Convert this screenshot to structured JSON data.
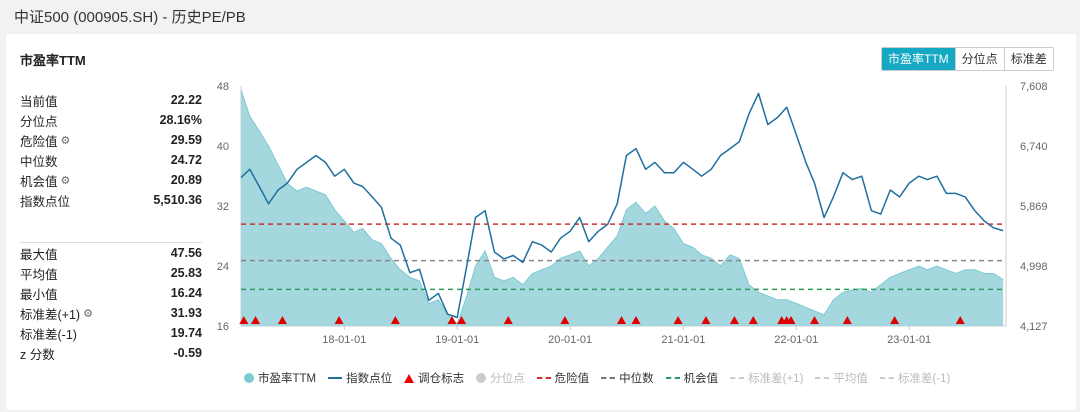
{
  "page": {
    "title": "中证500 (000905.SH) - 历史PE/PB"
  },
  "section": {
    "title": "市盈率TTM"
  },
  "tabs": [
    {
      "label": "市盈率TTM",
      "active": true
    },
    {
      "label": "分位点",
      "active": false
    },
    {
      "label": "标准差",
      "active": false
    }
  ],
  "stats_top": [
    {
      "label": "当前值",
      "value": "22.22",
      "gear": false
    },
    {
      "label": "分位点",
      "value": "28.16%",
      "gear": false
    },
    {
      "label": "危险值",
      "value": "29.59",
      "gear": true
    },
    {
      "label": "中位数",
      "value": "24.72",
      "gear": false
    },
    {
      "label": "机会值",
      "value": "20.89",
      "gear": true
    },
    {
      "label": "指数点位",
      "value": "5,510.36",
      "gear": false
    }
  ],
  "stats_bottom": [
    {
      "label": "最大值",
      "value": "47.56",
      "gear": false
    },
    {
      "label": "平均值",
      "value": "25.83",
      "gear": false
    },
    {
      "label": "最小值",
      "value": "16.24",
      "gear": false
    },
    {
      "label": "标准差(+1)",
      "value": "31.93",
      "gear": true
    },
    {
      "label": "标准差(-1)",
      "value": "19.74",
      "gear": false
    },
    {
      "label": "z 分数",
      "value": "-0.59",
      "gear": false
    }
  ],
  "colors": {
    "pe_fill": "#9fd5dc",
    "pe_line": "#7ecad3",
    "index_line": "#1f6f9f",
    "danger": "#d32f2f",
    "median": "#999999",
    "opportunity": "#2e9a5c",
    "marker": "#e00000",
    "tab_active": "#15a8c2"
  },
  "legend": [
    {
      "label": "市盈率TTM",
      "icon": "dot-icon",
      "muted": false
    },
    {
      "label": "指数点位",
      "icon": "line-icon",
      "muted": false
    },
    {
      "label": "调仓标志",
      "icon": "triangle-icon",
      "muted": false
    },
    {
      "label": "分位点",
      "icon": "dot-icon",
      "muted": true
    },
    {
      "label": "危险值",
      "icon": "dash-icon",
      "muted": false
    },
    {
      "label": "中位数",
      "icon": "dash-icon",
      "muted": false
    },
    {
      "label": "机会值",
      "icon": "dash-icon",
      "muted": false
    },
    {
      "label": "标准差(+1)",
      "icon": "dash-icon",
      "muted": true
    },
    {
      "label": "平均值",
      "icon": "dash-icon",
      "muted": true
    },
    {
      "label": "标准差(-1)",
      "icon": "dash-icon",
      "muted": true
    }
  ],
  "chart_data": {
    "type": "area",
    "x_tick_labels": [
      "18-01-01",
      "19-01-01",
      "20-01-01",
      "21-01-01",
      "22-01-01",
      "23-01-01"
    ],
    "x_tick_dates": [
      "2018-01-01",
      "2019-01-01",
      "2020-01-01",
      "2021-01-01",
      "2022-01-01",
      "2023-01-01"
    ],
    "x_range": [
      "2017-02-01",
      "2023-11-10"
    ],
    "left_axis": {
      "ticks": [
        "16",
        "24",
        "32",
        "40",
        "48"
      ],
      "range": [
        16,
        48
      ]
    },
    "right_axis": {
      "ticks": [
        "4,127",
        "4,998",
        "5,869",
        "6,740",
        "7,608"
      ],
      "range": [
        4127,
        7608
      ]
    },
    "reference_lines": {
      "danger": 29.59,
      "median": 24.72,
      "opportunity": 20.89
    },
    "series": [
      {
        "name": "市盈率TTM",
        "axis": "left",
        "points": [
          [
            "2017-02-01",
            47.5
          ],
          [
            "2017-03-01",
            44.0
          ],
          [
            "2017-04-01",
            42.0
          ],
          [
            "2017-05-01",
            40.0
          ],
          [
            "2017-06-01",
            37.5
          ],
          [
            "2017-07-01",
            35.0
          ],
          [
            "2017-08-01",
            34.0
          ],
          [
            "2017-09-01",
            34.5
          ],
          [
            "2017-10-01",
            34.0
          ],
          [
            "2017-11-01",
            33.5
          ],
          [
            "2017-12-01",
            31.5
          ],
          [
            "2018-01-01",
            30.0
          ],
          [
            "2018-02-01",
            28.5
          ],
          [
            "2018-03-01",
            29.0
          ],
          [
            "2018-04-01",
            27.5
          ],
          [
            "2018-05-01",
            27.0
          ],
          [
            "2018-06-01",
            25.0
          ],
          [
            "2018-07-01",
            23.5
          ],
          [
            "2018-08-01",
            22.5
          ],
          [
            "2018-09-01",
            22.0
          ],
          [
            "2018-10-01",
            19.0
          ],
          [
            "2018-11-01",
            19.5
          ],
          [
            "2018-12-01",
            17.5
          ],
          [
            "2019-01-01",
            16.3
          ],
          [
            "2019-02-01",
            20.0
          ],
          [
            "2019-03-01",
            24.0
          ],
          [
            "2019-04-01",
            26.0
          ],
          [
            "2019-05-01",
            22.5
          ],
          [
            "2019-06-01",
            22.0
          ],
          [
            "2019-07-01",
            22.5
          ],
          [
            "2019-08-01",
            21.5
          ],
          [
            "2019-09-01",
            23.0
          ],
          [
            "2019-10-01",
            23.5
          ],
          [
            "2019-11-01",
            24.0
          ],
          [
            "2019-12-01",
            25.0
          ],
          [
            "2020-01-01",
            25.5
          ],
          [
            "2020-02-01",
            26.0
          ],
          [
            "2020-03-01",
            24.0
          ],
          [
            "2020-04-01",
            25.0
          ],
          [
            "2020-05-01",
            26.5
          ],
          [
            "2020-06-01",
            28.0
          ],
          [
            "2020-07-01",
            31.5
          ],
          [
            "2020-08-01",
            32.5
          ],
          [
            "2020-09-01",
            31.0
          ],
          [
            "2020-10-01",
            32.0
          ],
          [
            "2020-11-01",
            30.0
          ],
          [
            "2020-12-01",
            29.0
          ],
          [
            "2021-01-01",
            27.0
          ],
          [
            "2021-02-01",
            26.5
          ],
          [
            "2021-03-01",
            25.5
          ],
          [
            "2021-04-01",
            25.0
          ],
          [
            "2021-05-01",
            24.0
          ],
          [
            "2021-06-01",
            25.5
          ],
          [
            "2021-07-01",
            25.0
          ],
          [
            "2021-08-01",
            21.5
          ],
          [
            "2021-09-01",
            20.5
          ],
          [
            "2021-10-01",
            20.0
          ],
          [
            "2021-11-01",
            19.5
          ],
          [
            "2021-12-01",
            19.5
          ],
          [
            "2022-01-01",
            19.0
          ],
          [
            "2022-02-01",
            18.5
          ],
          [
            "2022-03-01",
            18.0
          ],
          [
            "2022-04-01",
            17.5
          ],
          [
            "2022-05-01",
            19.5
          ],
          [
            "2022-06-01",
            20.5
          ],
          [
            "2022-07-01",
            20.8
          ],
          [
            "2022-08-01",
            21.0
          ],
          [
            "2022-09-01",
            20.5
          ],
          [
            "2022-10-01",
            21.5
          ],
          [
            "2022-11-01",
            22.5
          ],
          [
            "2022-12-01",
            23.0
          ],
          [
            "2023-01-01",
            23.5
          ],
          [
            "2023-02-01",
            24.0
          ],
          [
            "2023-03-01",
            23.5
          ],
          [
            "2023-04-01",
            24.0
          ],
          [
            "2023-05-01",
            23.5
          ],
          [
            "2023-06-01",
            23.0
          ],
          [
            "2023-07-01",
            23.5
          ],
          [
            "2023-08-01",
            23.5
          ],
          [
            "2023-09-01",
            23.0
          ],
          [
            "2023-10-01",
            23.0
          ],
          [
            "2023-11-01",
            22.2
          ]
        ]
      },
      {
        "name": "指数点位",
        "axis": "right",
        "points": [
          [
            "2017-02-01",
            6280
          ],
          [
            "2017-03-01",
            6400
          ],
          [
            "2017-04-01",
            6150
          ],
          [
            "2017-05-01",
            5900
          ],
          [
            "2017-06-01",
            6100
          ],
          [
            "2017-07-01",
            6200
          ],
          [
            "2017-08-01",
            6400
          ],
          [
            "2017-09-01",
            6500
          ],
          [
            "2017-10-01",
            6600
          ],
          [
            "2017-11-01",
            6500
          ],
          [
            "2017-12-01",
            6300
          ],
          [
            "2018-01-01",
            6400
          ],
          [
            "2018-02-01",
            6200
          ],
          [
            "2018-03-01",
            6150
          ],
          [
            "2018-04-01",
            6000
          ],
          [
            "2018-05-01",
            5850
          ],
          [
            "2018-06-01",
            5400
          ],
          [
            "2018-07-01",
            5300
          ],
          [
            "2018-08-01",
            4900
          ],
          [
            "2018-09-01",
            4950
          ],
          [
            "2018-10-01",
            4500
          ],
          [
            "2018-11-01",
            4600
          ],
          [
            "2018-12-01",
            4300
          ],
          [
            "2019-01-01",
            4250
          ],
          [
            "2019-02-01",
            5000
          ],
          [
            "2019-03-01",
            5700
          ],
          [
            "2019-04-01",
            5800
          ],
          [
            "2019-05-01",
            5200
          ],
          [
            "2019-06-01",
            5100
          ],
          [
            "2019-07-01",
            5150
          ],
          [
            "2019-08-01",
            5050
          ],
          [
            "2019-09-01",
            5350
          ],
          [
            "2019-10-01",
            5300
          ],
          [
            "2019-11-01",
            5200
          ],
          [
            "2019-12-01",
            5400
          ],
          [
            "2020-01-01",
            5500
          ],
          [
            "2020-02-01",
            5700
          ],
          [
            "2020-03-01",
            5350
          ],
          [
            "2020-04-01",
            5500
          ],
          [
            "2020-05-01",
            5600
          ],
          [
            "2020-06-01",
            5900
          ],
          [
            "2020-07-01",
            6600
          ],
          [
            "2020-08-01",
            6700
          ],
          [
            "2020-09-01",
            6400
          ],
          [
            "2020-10-01",
            6500
          ],
          [
            "2020-11-01",
            6350
          ],
          [
            "2020-12-01",
            6350
          ],
          [
            "2021-01-01",
            6500
          ],
          [
            "2021-02-01",
            6400
          ],
          [
            "2021-03-01",
            6300
          ],
          [
            "2021-04-01",
            6400
          ],
          [
            "2021-05-01",
            6600
          ],
          [
            "2021-06-01",
            6700
          ],
          [
            "2021-07-01",
            6800
          ],
          [
            "2021-08-01",
            7200
          ],
          [
            "2021-09-01",
            7500
          ],
          [
            "2021-10-01",
            7050
          ],
          [
            "2021-11-01",
            7150
          ],
          [
            "2021-12-01",
            7300
          ],
          [
            "2022-01-01",
            6900
          ],
          [
            "2022-02-01",
            6500
          ],
          [
            "2022-03-01",
            6200
          ],
          [
            "2022-04-01",
            5700
          ],
          [
            "2022-05-01",
            6000
          ],
          [
            "2022-06-01",
            6350
          ],
          [
            "2022-07-01",
            6250
          ],
          [
            "2022-08-01",
            6300
          ],
          [
            "2022-09-01",
            5800
          ],
          [
            "2022-10-01",
            5750
          ],
          [
            "2022-11-01",
            6100
          ],
          [
            "2022-12-01",
            6000
          ],
          [
            "2023-01-01",
            6200
          ],
          [
            "2023-02-01",
            6300
          ],
          [
            "2023-03-01",
            6250
          ],
          [
            "2023-04-01",
            6300
          ],
          [
            "2023-05-01",
            6050
          ],
          [
            "2023-06-01",
            6050
          ],
          [
            "2023-07-01",
            6000
          ],
          [
            "2023-08-01",
            5800
          ],
          [
            "2023-09-01",
            5650
          ],
          [
            "2023-10-01",
            5550
          ],
          [
            "2023-11-01",
            5510
          ]
        ]
      }
    ],
    "rebalance_markers": [
      "2017-02-10",
      "2017-03-20",
      "2017-06-15",
      "2017-12-15",
      "2018-06-15",
      "2018-12-15",
      "2019-01-15",
      "2019-06-15",
      "2019-12-15",
      "2020-06-15",
      "2020-08-01",
      "2020-12-15",
      "2021-03-15",
      "2021-06-15",
      "2021-08-15",
      "2021-11-15",
      "2021-12-01",
      "2021-12-15",
      "2022-03-01",
      "2022-06-15",
      "2022-11-15",
      "2023-06-15"
    ]
  }
}
